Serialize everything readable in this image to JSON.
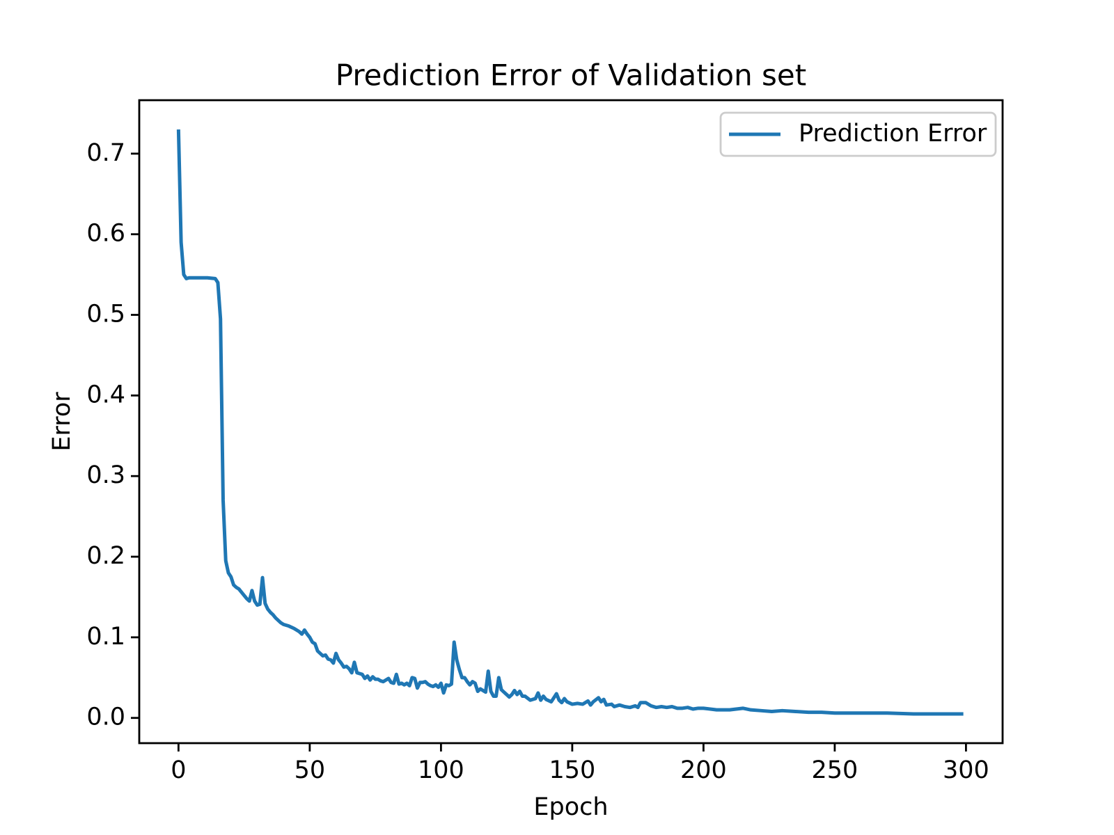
{
  "chart_data": {
    "type": "line",
    "title": "Prediction Error of Validation set",
    "x_label": "Epoch",
    "y_label": "Error",
    "x": [
      0,
      1,
      2,
      3,
      4,
      8,
      11,
      14,
      15,
      16,
      17,
      18,
      19,
      20,
      21,
      22,
      23,
      24,
      25,
      26,
      27,
      28,
      29,
      30,
      31,
      32,
      33,
      34,
      35,
      36,
      37,
      38,
      39,
      40,
      42,
      44,
      46,
      47,
      48,
      49,
      50,
      51,
      52,
      53,
      54,
      55,
      56,
      57,
      58,
      59,
      60,
      61,
      62,
      63,
      64,
      65,
      66,
      67,
      68,
      69,
      70,
      71,
      72,
      73,
      74,
      75,
      76,
      77,
      78,
      80,
      81,
      82,
      83,
      84,
      85,
      86,
      87,
      88,
      89,
      90,
      91,
      92,
      93,
      94,
      95,
      96,
      97,
      98,
      99,
      100,
      101,
      102,
      103,
      104,
      105,
      106,
      107,
      108,
      109,
      110,
      111,
      112,
      113,
      114,
      115,
      116,
      117,
      118,
      119,
      120,
      121,
      122,
      123,
      124,
      125,
      126,
      127,
      128,
      129,
      130,
      131,
      132,
      134,
      136,
      137,
      138,
      139,
      140,
      142,
      144,
      145,
      146,
      147,
      148,
      150,
      152,
      154,
      156,
      157,
      158,
      160,
      161,
      162,
      163,
      165,
      166,
      168,
      170,
      172,
      174,
      175,
      176,
      178,
      180,
      182,
      184,
      186,
      188,
      190,
      192,
      194,
      196,
      198,
      200,
      205,
      210,
      215,
      218,
      222,
      226,
      230,
      235,
      240,
      245,
      250,
      260,
      270,
      280,
      290,
      299
    ],
    "series": [
      {
        "name": "Prediction Error",
        "color": "#1f77b4",
        "values": [
          0.73,
          0.59,
          0.55,
          0.545,
          0.546,
          0.546,
          0.546,
          0.545,
          0.54,
          0.495,
          0.27,
          0.195,
          0.18,
          0.175,
          0.165,
          0.162,
          0.16,
          0.156,
          0.152,
          0.148,
          0.145,
          0.158,
          0.145,
          0.14,
          0.141,
          0.174,
          0.142,
          0.135,
          0.131,
          0.128,
          0.124,
          0.121,
          0.118,
          0.116,
          0.114,
          0.111,
          0.107,
          0.104,
          0.109,
          0.104,
          0.1,
          0.094,
          0.092,
          0.083,
          0.08,
          0.077,
          0.078,
          0.073,
          0.072,
          0.068,
          0.08,
          0.072,
          0.068,
          0.063,
          0.064,
          0.061,
          0.056,
          0.069,
          0.056,
          0.055,
          0.054,
          0.049,
          0.052,
          0.047,
          0.051,
          0.048,
          0.048,
          0.046,
          0.045,
          0.049,
          0.044,
          0.043,
          0.054,
          0.042,
          0.043,
          0.041,
          0.043,
          0.04,
          0.05,
          0.049,
          0.037,
          0.044,
          0.044,
          0.045,
          0.042,
          0.04,
          0.039,
          0.041,
          0.038,
          0.043,
          0.031,
          0.041,
          0.04,
          0.042,
          0.094,
          0.072,
          0.06,
          0.05,
          0.05,
          0.045,
          0.041,
          0.045,
          0.043,
          0.033,
          0.036,
          0.034,
          0.032,
          0.058,
          0.033,
          0.027,
          0.027,
          0.05,
          0.035,
          0.032,
          0.029,
          0.026,
          0.029,
          0.034,
          0.029,
          0.033,
          0.027,
          0.027,
          0.022,
          0.024,
          0.031,
          0.022,
          0.027,
          0.023,
          0.02,
          0.03,
          0.022,
          0.019,
          0.024,
          0.02,
          0.017,
          0.018,
          0.017,
          0.021,
          0.016,
          0.02,
          0.025,
          0.02,
          0.023,
          0.016,
          0.017,
          0.014,
          0.016,
          0.014,
          0.013,
          0.015,
          0.013,
          0.019,
          0.019,
          0.015,
          0.013,
          0.014,
          0.013,
          0.014,
          0.012,
          0.012,
          0.013,
          0.011,
          0.012,
          0.012,
          0.01,
          0.01,
          0.012,
          0.01,
          0.009,
          0.008,
          0.009,
          0.008,
          0.007,
          0.007,
          0.006,
          0.006,
          0.006,
          0.005,
          0.005,
          0.005
        ]
      }
    ],
    "xlim": [
      -14.95,
      313.95
    ],
    "xticks": [
      0,
      50,
      100,
      150,
      200,
      250,
      300
    ],
    "ylim": [
      -0.0313,
      0.7663
    ],
    "yticks": [
      {
        "value": 0,
        "label": "0.0"
      },
      0.1,
      0.2,
      0.3,
      0.4,
      0.5,
      0.6,
      0.7
    ],
    "legend": "upper right",
    "grid": false
  }
}
